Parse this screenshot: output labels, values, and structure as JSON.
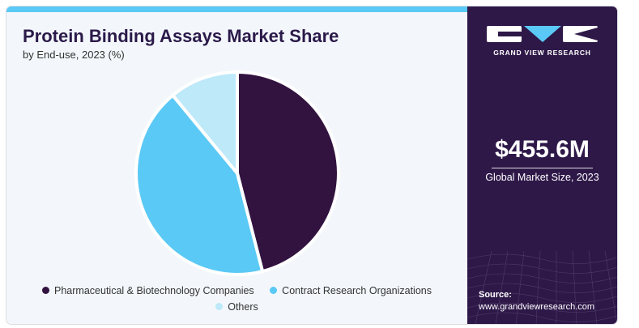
{
  "colors": {
    "panel_bg": "#f3f7fb",
    "accent_bar": "#5bc9f5",
    "sidebar_bg": "#2e1848",
    "title_color": "#2b1a4a"
  },
  "chart_data": {
    "type": "pie",
    "title": "Protein Binding Assays Market Share",
    "subtitle": "by End-use, 2023 (%)",
    "series": [
      {
        "name": "Pharmaceutical & Biotechnology Companies",
        "value": 46,
        "color": "#32133f"
      },
      {
        "name": "Contract Research Organizations",
        "value": 43,
        "color": "#5bc9f5"
      },
      {
        "name": "Others",
        "value": 11,
        "color": "#bde9f9"
      }
    ],
    "legend_position": "bottom"
  },
  "sidebar": {
    "brand_name": "GRAND VIEW RESEARCH",
    "logo_icon": "gvr-logo-icon",
    "market_size_value": "$455.6M",
    "market_size_label": "Global Market Size, 2023",
    "source_label": "Source:",
    "source_url": "www.grandviewresearch.com"
  }
}
